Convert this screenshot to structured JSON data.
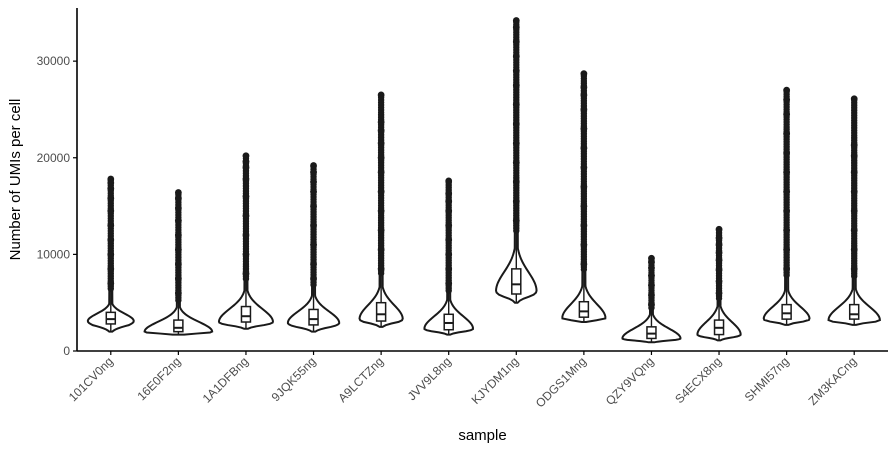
{
  "chart_data": {
    "type": "violin",
    "xlabel": "sample",
    "ylabel": "Number of UMIs per cell",
    "ylim": [
      0,
      35500
    ],
    "yticks": [
      0,
      10000,
      20000,
      30000
    ],
    "ytick_labels": [
      "0",
      "10000",
      "20000",
      "30000"
    ],
    "grid": false,
    "legend": "none",
    "colors": {
      "stroke": "#1a1a1a",
      "box_fill": "#ffffff",
      "axis": "#000000"
    },
    "categories": [
      "101CV0ng",
      "16E0F2ng",
      "1A1DFBng",
      "9JQK55ng",
      "A9LCTZng",
      "JVV9L8ng",
      "KJYDM1ng",
      "ODGS1Mng",
      "QZY9VQng",
      "S4ECX8ng",
      "SHMI57ng",
      "ZM3KACng"
    ],
    "series": [
      {
        "category": "101CV0ng",
        "min": 2000,
        "q1": 2800,
        "median": 3300,
        "q3": 4000,
        "max": 17800,
        "mode": 3100,
        "max_density_width": 0.34,
        "whisker_top": 6200,
        "outliers": [
          7000,
          8500,
          10000,
          11500,
          13000,
          14500,
          15800,
          16800,
          17400,
          17800
        ]
      },
      {
        "category": "16E0F2ng",
        "min": 1700,
        "q1": 2000,
        "median": 2400,
        "q3": 3200,
        "max": 16400,
        "mode": 2000,
        "max_density_width": 0.5,
        "whisker_top": 5000,
        "outliers": [
          6000,
          7500,
          9000,
          10500,
          12000,
          13500,
          14800,
          15800,
          16400
        ]
      },
      {
        "category": "1A1DFBng",
        "min": 2300,
        "q1": 3000,
        "median": 3600,
        "q3": 4600,
        "max": 20200,
        "mode": 3000,
        "max_density_width": 0.4,
        "whisker_top": 7200,
        "outliers": [
          8000,
          10000,
          12000,
          14000,
          16000,
          17800,
          19000,
          19600,
          20200
        ]
      },
      {
        "category": "9JQK55ng",
        "min": 2000,
        "q1": 2700,
        "median": 3300,
        "q3": 4300,
        "max": 19200,
        "mode": 2900,
        "max_density_width": 0.38,
        "whisker_top": 6600,
        "outliers": [
          7500,
          9000,
          11000,
          13000,
          15000,
          16500,
          17500,
          18500,
          19200
        ]
      },
      {
        "category": "A9LCTZng",
        "min": 2500,
        "q1": 3100,
        "median": 3800,
        "q3": 5000,
        "max": 26500,
        "mode": 3300,
        "max_density_width": 0.32,
        "whisker_top": 7800,
        "outliers": [
          8500,
          10500,
          12500,
          14500,
          16500,
          18500,
          20000,
          21500,
          22800,
          23700,
          26500
        ]
      },
      {
        "category": "JVV9L8ng",
        "min": 1700,
        "q1": 2200,
        "median": 2900,
        "q3": 3800,
        "max": 17600,
        "mode": 2300,
        "max_density_width": 0.36,
        "whisker_top": 6000,
        "outliers": [
          7000,
          8500,
          10000,
          11500,
          13000,
          14500,
          15500,
          16300,
          17600
        ]
      },
      {
        "category": "KJYDM1ng",
        "min": 5000,
        "q1": 5900,
        "median": 6900,
        "q3": 8500,
        "max": 34200,
        "mode": 6200,
        "max_density_width": 0.3,
        "whisker_top": 12200,
        "outliers": [
          13500,
          15500,
          17500,
          19500,
          21500,
          23500,
          25500,
          27500,
          29000,
          30500,
          32000,
          33500,
          34200
        ]
      },
      {
        "category": "ODGS1Mng",
        "min": 3000,
        "q1": 3500,
        "median": 4100,
        "q3": 5100,
        "max": 28700,
        "mode": 3400,
        "max_density_width": 0.32,
        "whisker_top": 8200,
        "outliers": [
          9000,
          11000,
          13000,
          15000,
          17000,
          19000,
          21000,
          23000,
          25000,
          26500,
          27300,
          28700
        ]
      },
      {
        "category": "QZY9VQng",
        "min": 900,
        "q1": 1300,
        "median": 1800,
        "q3": 2500,
        "max": 9600,
        "mode": 1300,
        "max_density_width": 0.43,
        "whisker_top": 4200,
        "outliers": [
          4800,
          5800,
          6800,
          7800,
          8600,
          9200,
          9600
        ]
      },
      {
        "category": "S4ECX8ng",
        "min": 1100,
        "q1": 1700,
        "median": 2400,
        "q3": 3200,
        "max": 12600,
        "mode": 1700,
        "max_density_width": 0.32,
        "whisker_top": 5200,
        "outliers": [
          6000,
          7200,
          8400,
          9400,
          10200,
          11000,
          11700,
          12600
        ]
      },
      {
        "category": "SHMI57ng",
        "min": 2700,
        "q1": 3300,
        "median": 3900,
        "q3": 4800,
        "max": 27000,
        "mode": 3300,
        "max_density_width": 0.34,
        "whisker_top": 7600,
        "outliers": [
          8500,
          10500,
          12500,
          14500,
          16500,
          18500,
          20500,
          22500,
          24500,
          26000,
          27000
        ]
      },
      {
        "category": "ZM3KACng",
        "min": 2700,
        "q1": 3300,
        "median": 3800,
        "q3": 4800,
        "max": 26100,
        "mode": 3200,
        "max_density_width": 0.38,
        "whisker_top": 7500,
        "outliers": [
          8500,
          10500,
          12500,
          14500,
          16500,
          18500,
          20200,
          21300,
          26100
        ]
      }
    ]
  }
}
